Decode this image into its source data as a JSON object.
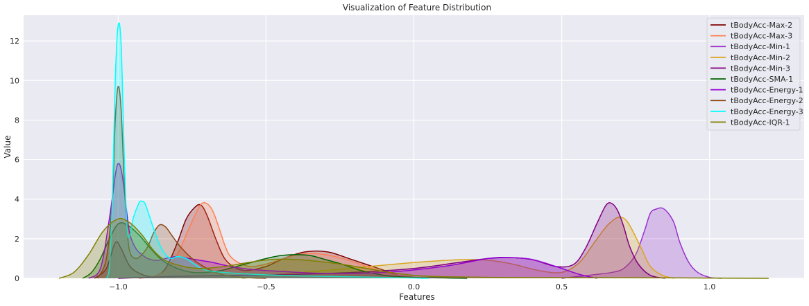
{
  "chart_data": {
    "type": "area",
    "title": "Visualization of Feature Distribution",
    "xlabel": "Features",
    "ylabel": "Value",
    "xlim": [
      -1.32,
      1.32
    ],
    "ylim": [
      0,
      13.3
    ],
    "xticks": [
      -1.0,
      -0.5,
      0.0,
      0.5,
      1.0
    ],
    "xtick_labels": [
      "−1.0",
      "−0.5",
      "0.0",
      "0.5",
      "1.0"
    ],
    "yticks": [
      0,
      2,
      4,
      6,
      8,
      10,
      12
    ],
    "ytick_labels": [
      "0",
      "2",
      "4",
      "6",
      "8",
      "10",
      "12"
    ],
    "grid": true,
    "legend_position": "top-right",
    "background": "#eaeaf2",
    "series": [
      {
        "name": "tBodyAcc-Max-2",
        "color": "#800000",
        "x": [
          -1.08,
          -1.04,
          -1.01,
          -0.99,
          -0.96,
          -0.92,
          -0.88,
          -0.84,
          -0.8,
          -0.77,
          -0.74,
          -0.72,
          -0.7,
          -0.67,
          -0.64,
          -0.6,
          -0.56,
          -0.5,
          -0.44,
          -0.38,
          -0.33,
          -0.28,
          -0.22,
          -0.16,
          -0.1,
          -0.05,
          0.0,
          0.03
        ],
        "y": [
          0,
          0.5,
          1.8,
          1.5,
          0.6,
          0.2,
          0.1,
          0.5,
          1.8,
          3.0,
          3.6,
          3.7,
          3.2,
          2.0,
          1.0,
          0.5,
          0.4,
          0.6,
          1.0,
          1.3,
          1.38,
          1.3,
          1.0,
          0.7,
          0.4,
          0.15,
          0.05,
          0
        ]
      },
      {
        "name": "tBodyAcc-Max-3",
        "color": "#ff7f50",
        "x": [
          -0.93,
          -0.88,
          -0.84,
          -0.8,
          -0.77,
          -0.74,
          -0.72,
          -0.7,
          -0.68,
          -0.66,
          -0.64,
          -0.62,
          -0.58,
          -0.54,
          -0.48,
          -0.42,
          -0.36,
          -0.3,
          -0.24,
          -0.18,
          -0.12,
          -0.05,
          0.03
        ],
        "y": [
          0,
          0.1,
          0.4,
          1.2,
          2.2,
          3.2,
          3.75,
          3.78,
          3.4,
          2.6,
          1.7,
          1.1,
          0.7,
          0.6,
          0.8,
          1.1,
          1.25,
          1.2,
          1.0,
          0.7,
          0.4,
          0.15,
          0
        ]
      },
      {
        "name": "tBodyAcc-Min-1",
        "color": "#9932cc",
        "x": [
          0.5,
          0.56,
          0.62,
          0.67,
          0.71,
          0.75,
          0.78,
          0.8,
          0.82,
          0.84,
          0.86,
          0.88,
          0.9,
          0.93,
          0.96,
          1.0,
          1.04
        ],
        "y": [
          0,
          0.1,
          0.2,
          0.3,
          0.5,
          1.2,
          2.4,
          3.3,
          3.5,
          3.55,
          3.3,
          2.8,
          1.8,
          0.8,
          0.3,
          0.05,
          0
        ]
      },
      {
        "name": "tBodyAcc-Min-2",
        "color": "#daa520",
        "x": [
          -0.58,
          -0.45,
          -0.3,
          -0.15,
          0.0,
          0.1,
          0.18,
          0.26,
          0.34,
          0.42,
          0.5,
          0.56,
          0.61,
          0.65,
          0.68,
          0.7,
          0.72,
          0.74,
          0.77,
          0.8,
          0.84,
          0.88
        ],
        "y": [
          0,
          0.2,
          0.4,
          0.6,
          0.8,
          0.9,
          0.95,
          0.9,
          0.7,
          0.4,
          0.3,
          0.8,
          1.8,
          2.6,
          3.0,
          3.1,
          2.9,
          2.4,
          1.5,
          0.6,
          0.15,
          0
        ]
      },
      {
        "name": "tBodyAcc-Min-3",
        "color": "#800080",
        "x": [
          -1.0,
          -0.8,
          -0.6,
          -0.4,
          -0.2,
          0.0,
          0.15,
          0.25,
          0.32,
          0.4,
          0.48,
          0.54,
          0.58,
          0.62,
          0.65,
          0.67,
          0.69,
          0.71,
          0.73,
          0.76,
          0.8,
          0.85
        ],
        "y": [
          0,
          0.1,
          0.15,
          0.2,
          0.3,
          0.5,
          0.8,
          1.0,
          1.05,
          0.95,
          0.6,
          0.7,
          1.5,
          2.8,
          3.7,
          3.78,
          3.4,
          2.6,
          1.6,
          0.7,
          0.15,
          0
        ]
      },
      {
        "name": "tBodyAcc-SMA-1",
        "color": "#006400",
        "x": [
          -1.12,
          -1.09,
          -1.06,
          -1.03,
          -1.0,
          -0.97,
          -0.93,
          -0.89,
          -0.85,
          -0.8,
          -0.75,
          -0.7,
          -0.65,
          -0.6,
          -0.55,
          -0.5,
          -0.45,
          -0.4,
          -0.35,
          -0.3,
          -0.24,
          -0.18,
          -0.1,
          0.0,
          0.1,
          0.18
        ],
        "y": [
          0,
          0.3,
          1.0,
          2.0,
          2.75,
          2.7,
          2.2,
          1.5,
          0.9,
          0.5,
          0.3,
          0.3,
          0.4,
          0.6,
          0.8,
          1.0,
          1.15,
          1.2,
          1.15,
          0.95,
          0.7,
          0.4,
          0.15,
          0.05,
          0.02,
          0
        ]
      },
      {
        "name": "tBodyAcc-Energy-1",
        "color": "#9400d3",
        "x": [
          -1.1,
          -1.06,
          -1.03,
          -1.01,
          -1.0,
          -0.99,
          -0.98,
          -0.97,
          -0.96,
          -0.94,
          -0.92,
          -0.9,
          -0.87,
          -0.84,
          -0.8,
          -0.76,
          -0.72,
          -0.68,
          -0.62,
          -0.55,
          -0.45,
          -0.3,
          -0.1,
          0.1,
          0.25,
          0.32,
          0.4,
          0.48,
          0.56,
          0.62
        ],
        "y": [
          0,
          0.5,
          3.0,
          5.2,
          5.8,
          5.5,
          4.5,
          3.2,
          2.2,
          1.5,
          1.2,
          1.0,
          0.9,
          1.0,
          1.1,
          1.0,
          0.9,
          0.8,
          0.6,
          0.45,
          0.35,
          0.25,
          0.3,
          0.6,
          1.0,
          1.05,
          0.95,
          0.6,
          0.2,
          0
        ]
      },
      {
        "name": "tBodyAcc-Energy-2",
        "color": "#8b4513",
        "x": [
          -1.07,
          -1.04,
          -1.02,
          -1.01,
          -1.0,
          -0.99,
          -0.98,
          -0.97,
          -0.96,
          -0.94,
          -0.92,
          -0.9,
          -0.88,
          -0.86,
          -0.84,
          -0.82,
          -0.79,
          -0.75,
          -0.7,
          -0.65,
          -0.58,
          -0.5
        ],
        "y": [
          0,
          1.0,
          4.0,
          8.0,
          9.7,
          8.5,
          5.0,
          2.5,
          1.3,
          1.0,
          1.2,
          1.6,
          2.3,
          2.7,
          2.6,
          2.2,
          1.6,
          1.0,
          0.5,
          0.2,
          0.05,
          0
        ]
      },
      {
        "name": "tBodyAcc-Energy-3",
        "color": "#00ffff",
        "x": [
          -1.04,
          -1.03,
          -1.02,
          -1.01,
          -1.0,
          -0.99,
          -0.98,
          -0.97,
          -0.96,
          -0.95,
          -0.93,
          -0.92,
          -0.91,
          -0.9,
          -0.88,
          -0.86,
          -0.84,
          -0.82,
          -0.8,
          -0.77,
          -0.74,
          -0.7,
          -0.6,
          -0.45,
          -0.3,
          -0.1,
          0.05
        ],
        "y": [
          0,
          0.5,
          4.0,
          10.0,
          12.8,
          11.8,
          6.5,
          2.5,
          2.2,
          3.0,
          3.8,
          3.9,
          3.8,
          3.4,
          2.5,
          1.7,
          1.2,
          1.0,
          1.1,
          1.0,
          0.7,
          0.4,
          0.25,
          0.15,
          0.1,
          0.05,
          0
        ]
      },
      {
        "name": "tBodyAcc-IQR-1",
        "color": "#808000",
        "x": [
          -1.2,
          -1.15,
          -1.1,
          -1.05,
          -1.0,
          -0.96,
          -0.92,
          -0.88,
          -0.84,
          -0.78,
          -0.72,
          -0.64,
          -0.56,
          -0.48,
          -0.4,
          -0.32,
          -0.24,
          -0.16,
          -0.08,
          0.0,
          0.1,
          0.3,
          0.6,
          0.9,
          1.05,
          1.2
        ],
        "y": [
          0,
          0.3,
          1.2,
          2.4,
          3.0,
          2.8,
          2.2,
          1.4,
          0.9,
          0.6,
          0.5,
          0.6,
          0.8,
          0.95,
          0.95,
          0.85,
          0.7,
          0.5,
          0.3,
          0.15,
          0.08,
          0.04,
          0.03,
          0.02,
          0.01,
          0
        ]
      }
    ]
  }
}
